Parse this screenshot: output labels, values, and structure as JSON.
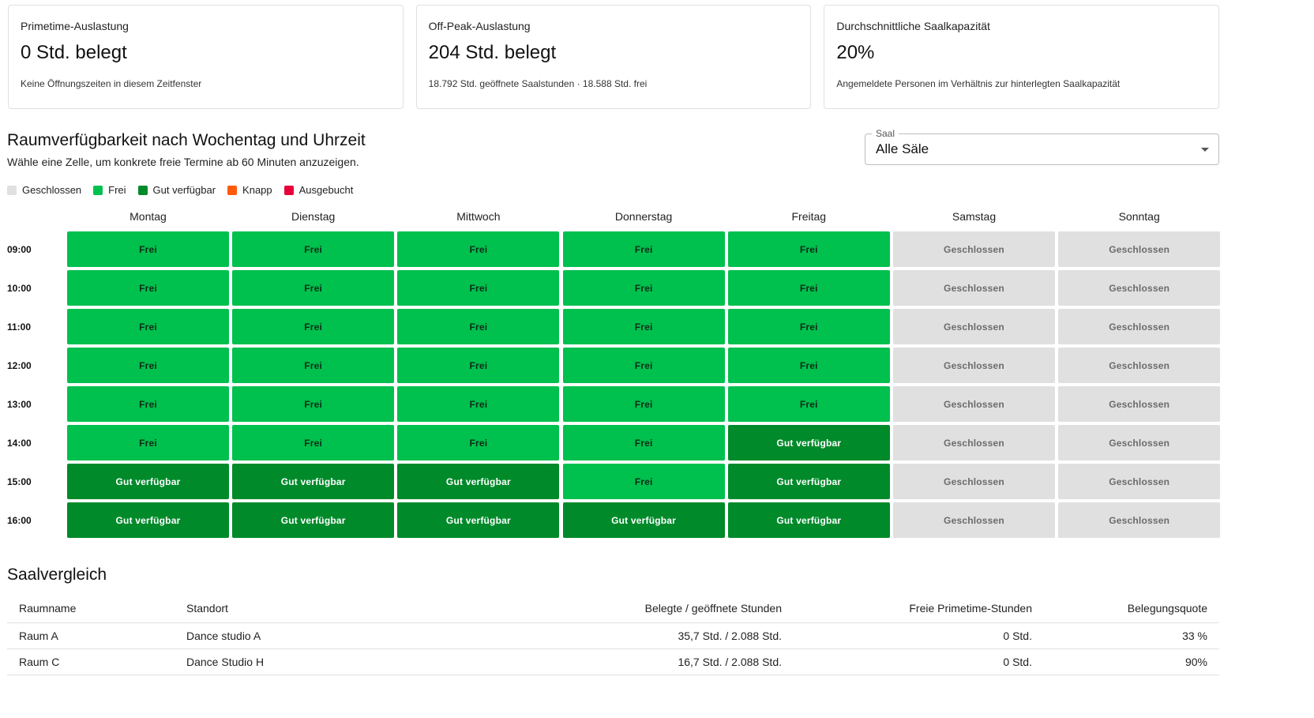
{
  "cards": [
    {
      "label": "Primetime-Auslastung",
      "value": "0 Std. belegt",
      "sub": "Keine Öffnungszeiten in diesem Zeitfenster"
    },
    {
      "label": "Off-Peak-Auslastung",
      "value": "204 Std. belegt",
      "sub": "18.792 Std. geöffnete Saalstunden · 18.588 Std. frei"
    },
    {
      "label": "Durchschnittliche Saalkapazität",
      "value": "20%",
      "sub": "Angemeldete Personen im Verhältnis zur hinterlegten Saalkapazität"
    }
  ],
  "availability": {
    "title": "Raumverfügbarkeit nach Wochentag und Uhrzeit",
    "hint": "Wähle eine Zelle, um konkrete freie Termine ab 60 Minuten anzuzeigen."
  },
  "room_select": {
    "label": "Saal",
    "value": "Alle Säle"
  },
  "legend": [
    {
      "label": "Geschlossen",
      "color": "#e0e0e0"
    },
    {
      "label": "Frei",
      "color": "#00c04e"
    },
    {
      "label": "Gut verfügbar",
      "color": "#008a2a"
    },
    {
      "label": "Knapp",
      "color": "#ff5a0a"
    },
    {
      "label": "Ausgebucht",
      "color": "#e8003a"
    }
  ],
  "grid": {
    "days": [
      "Montag",
      "Dienstag",
      "Mittwoch",
      "Donnerstag",
      "Freitag",
      "Samstag",
      "Sonntag"
    ],
    "times": [
      "09:00",
      "10:00",
      "11:00",
      "12:00",
      "13:00",
      "14:00",
      "15:00",
      "16:00"
    ],
    "status_labels": {
      "frei": "Frei",
      "gut": "Gut verfügbar",
      "geschlossen": "Geschlossen"
    },
    "cells": [
      [
        "frei",
        "frei",
        "frei",
        "frei",
        "frei",
        "geschlossen",
        "geschlossen"
      ],
      [
        "frei",
        "frei",
        "frei",
        "frei",
        "frei",
        "geschlossen",
        "geschlossen"
      ],
      [
        "frei",
        "frei",
        "frei",
        "frei",
        "frei",
        "geschlossen",
        "geschlossen"
      ],
      [
        "frei",
        "frei",
        "frei",
        "frei",
        "frei",
        "geschlossen",
        "geschlossen"
      ],
      [
        "frei",
        "frei",
        "frei",
        "frei",
        "frei",
        "geschlossen",
        "geschlossen"
      ],
      [
        "frei",
        "frei",
        "frei",
        "frei",
        "gut",
        "geschlossen",
        "geschlossen"
      ],
      [
        "gut",
        "gut",
        "gut",
        "frei",
        "gut",
        "geschlossen",
        "geschlossen"
      ],
      [
        "gut",
        "gut",
        "gut",
        "gut",
        "gut",
        "geschlossen",
        "geschlossen"
      ]
    ]
  },
  "comparison": {
    "title": "Saalvergleich",
    "columns": [
      "Raumname",
      "Standort",
      "Belegte / geöffnete Stunden",
      "Freie Primetime-Stunden",
      "Belegungsquote"
    ],
    "rows": [
      [
        "Raum A",
        "Dance studio A",
        "35,7 Std. / 2.088 Std.",
        "0 Std.",
        "33 %"
      ],
      [
        "Raum C",
        "Dance Studio H",
        "16,7 Std. / 2.088 Std.",
        "0 Std.",
        "90%"
      ]
    ]
  }
}
